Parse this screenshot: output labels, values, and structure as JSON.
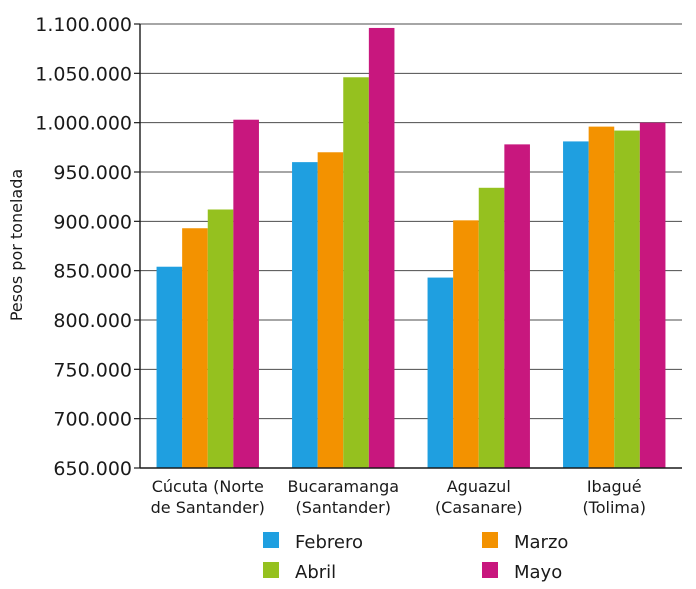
{
  "chart_data": {
    "type": "bar",
    "title": "",
    "xlabel": "",
    "ylabel": "Pesos por tonelada",
    "ylim": [
      650000,
      1100000
    ],
    "yticks": [
      650000,
      700000,
      750000,
      800000,
      850000,
      900000,
      950000,
      1000000,
      1050000,
      1100000
    ],
    "ytick_labels": [
      "650.000",
      "700.000",
      "750.000",
      "800.000",
      "850.000",
      "900.000",
      "950.000",
      "1.000.000",
      "1.050.000",
      "1.100.000"
    ],
    "grid": true,
    "legend_position": "bottom",
    "categories": [
      [
        "Cúcuta (Norte",
        "de Santander)"
      ],
      [
        "Bucaramanga",
        "(Santander)"
      ],
      [
        "Aguazul",
        "(Casanare)"
      ],
      [
        "Ibagué",
        "(Tolima)"
      ]
    ],
    "series": [
      {
        "name": "Febrero",
        "color": "#1f9fe0",
        "values": [
          854000,
          960000,
          843000,
          981000
        ]
      },
      {
        "name": "Marzo",
        "color": "#f39200",
        "values": [
          893000,
          970000,
          901000,
          996000
        ]
      },
      {
        "name": "Abril",
        "color": "#95c11f",
        "values": [
          912000,
          1046000,
          934000,
          992000
        ]
      },
      {
        "name": "Mayo",
        "color": "#c8177e",
        "values": [
          1003000,
          1096000,
          978000,
          1000000
        ]
      }
    ]
  }
}
